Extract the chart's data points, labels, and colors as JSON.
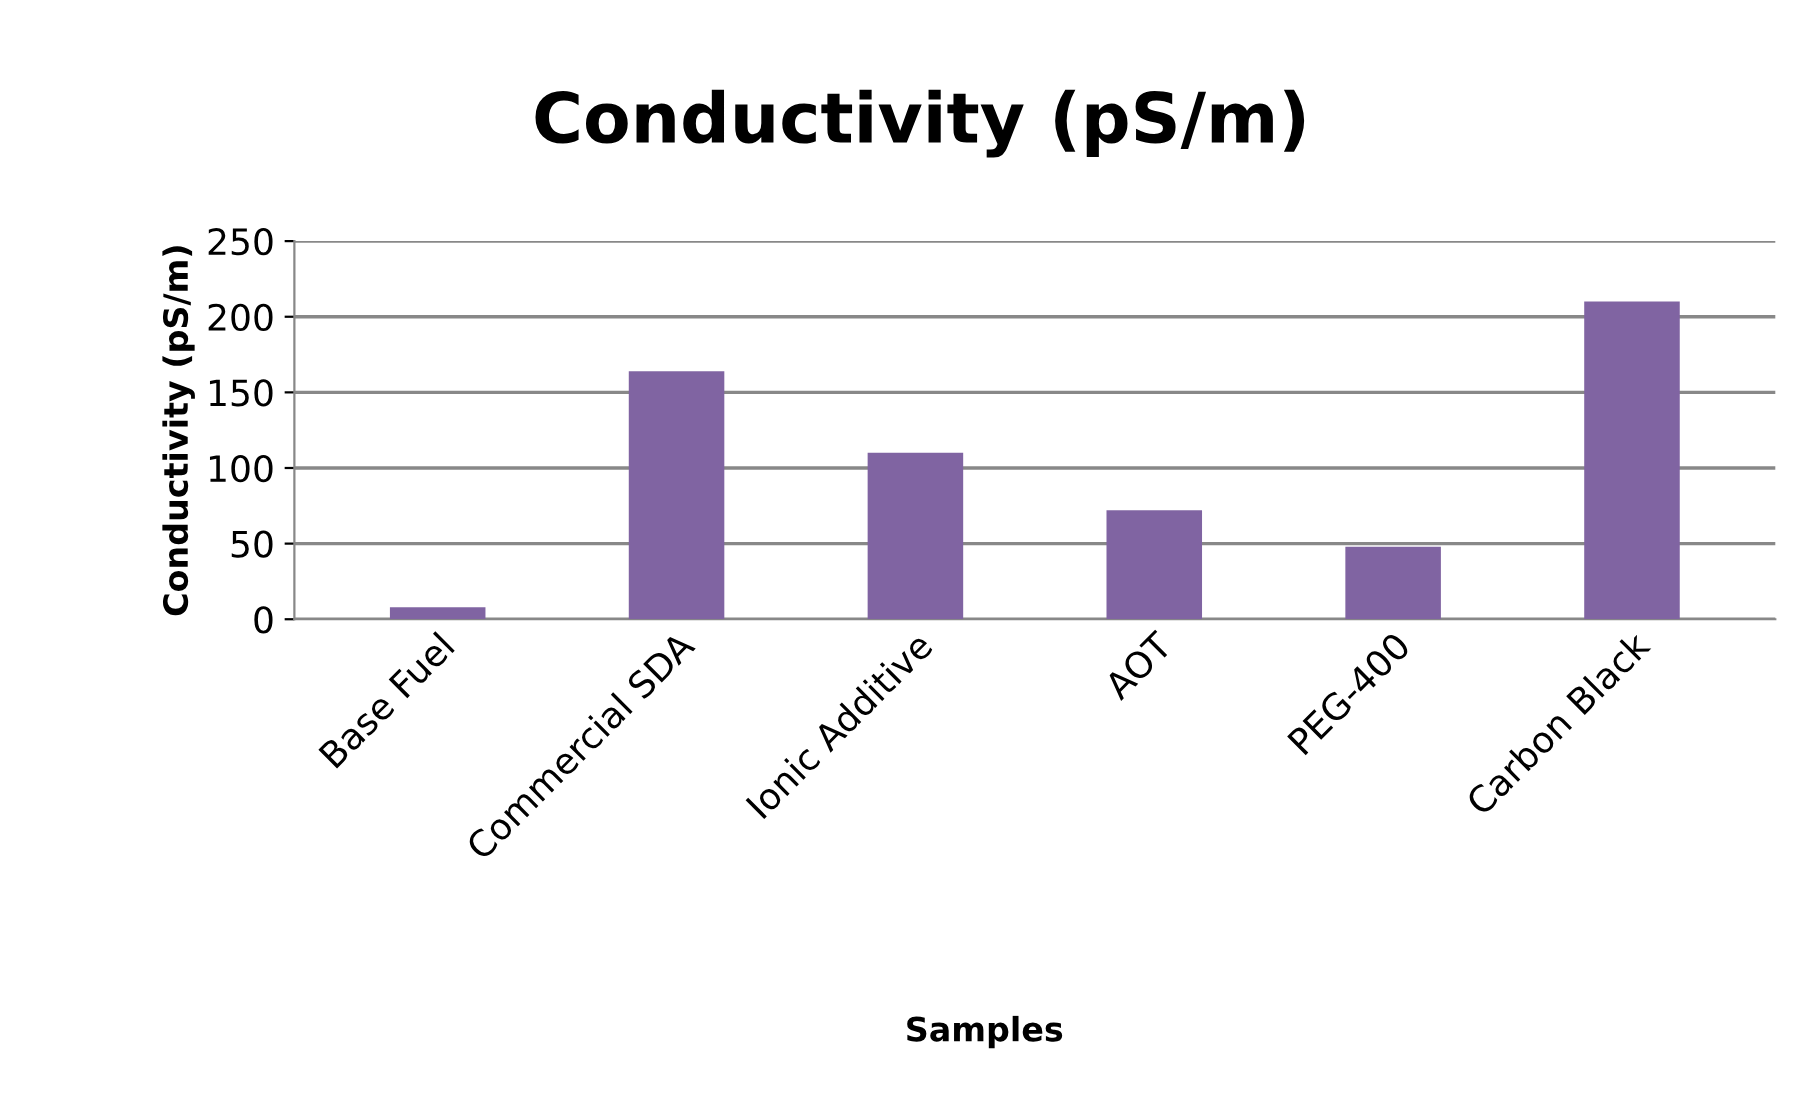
{
  "chart_data": {
    "type": "bar",
    "title": "Conductivity (pS/m)",
    "xlabel": "Samples",
    "ylabel": "Conductivity (pS/m)",
    "categories": [
      "Base Fuel",
      "Commercial SDA",
      "Ionic Additive",
      "AOT",
      "PEG-400",
      "Carbon Black"
    ],
    "values": [
      8,
      164,
      110,
      72,
      48,
      210
    ],
    "color": "#8064a2",
    "ylim": [
      0,
      250
    ],
    "yticks": [
      0,
      50,
      100,
      150,
      200,
      250
    ],
    "grid": "y",
    "legend": false
  }
}
